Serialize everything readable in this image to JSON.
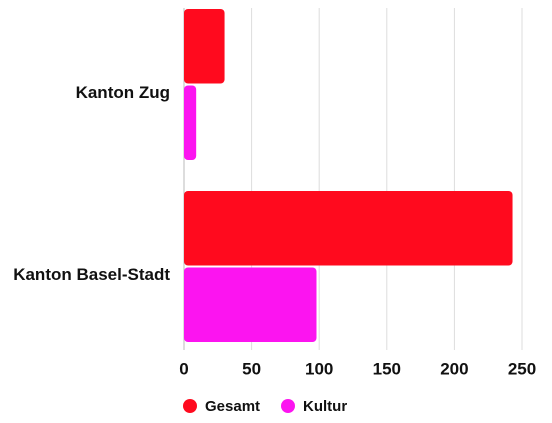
{
  "chart_data": {
    "type": "bar",
    "orientation": "horizontal",
    "categories": [
      "Kanton Zug",
      "Kanton Basel-Stadt"
    ],
    "series": [
      {
        "name": "Gesamt",
        "color": "#ff0a1e",
        "values": [
          30,
          243
        ]
      },
      {
        "name": "Kultur",
        "color": "#fc14f0",
        "values": [
          9,
          98
        ]
      }
    ],
    "xlim": [
      0,
      250
    ],
    "xticks": [
      0,
      50,
      100,
      150,
      200,
      250
    ],
    "grid": true
  }
}
